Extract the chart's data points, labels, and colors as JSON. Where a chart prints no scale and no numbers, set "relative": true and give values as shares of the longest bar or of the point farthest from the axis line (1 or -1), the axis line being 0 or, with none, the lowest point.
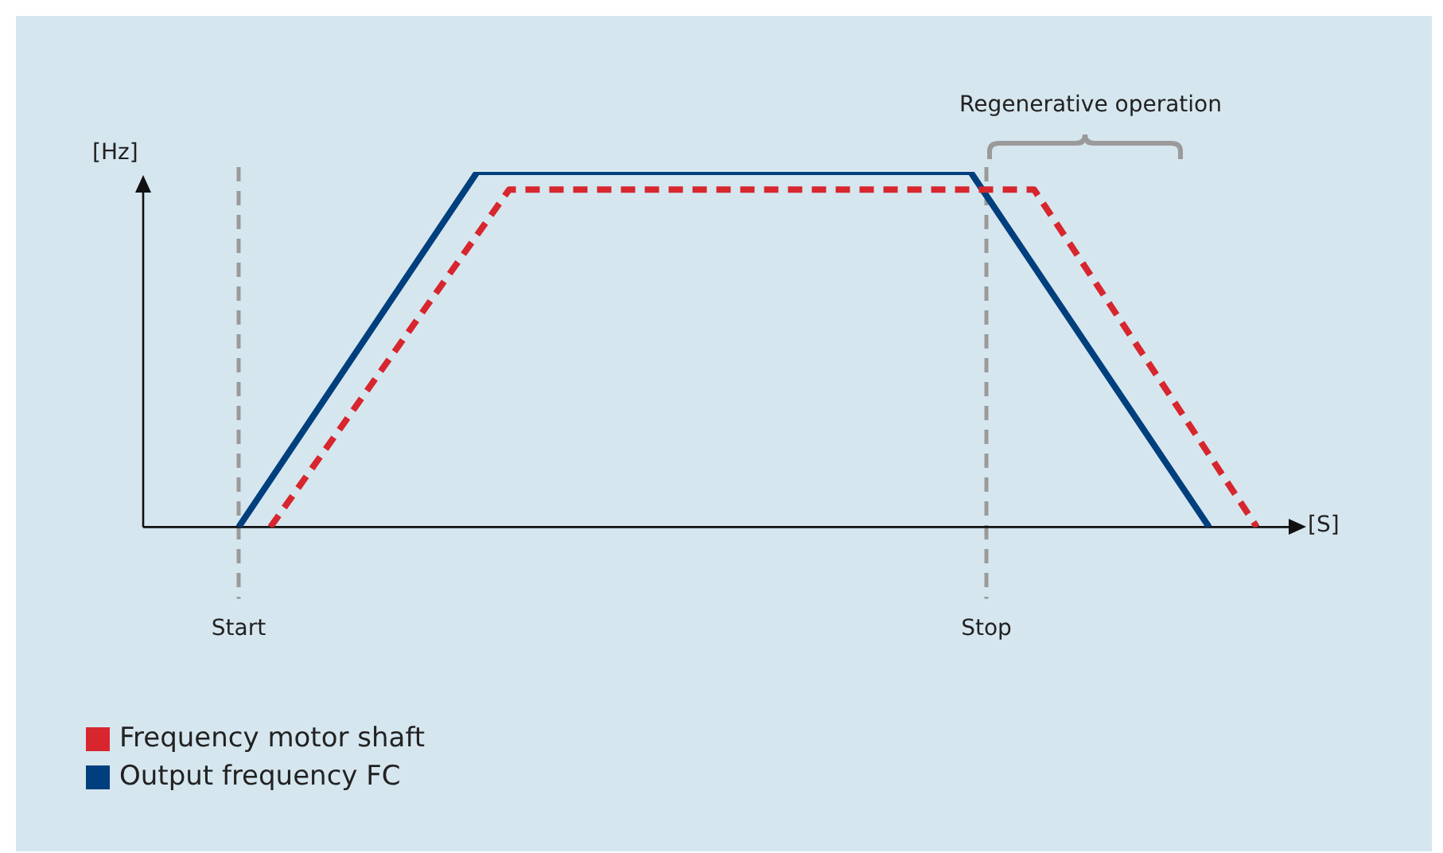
{
  "chart_data": {
    "type": "line",
    "relative": true,
    "xlabel": "[S]",
    "ylabel": "[Hz]",
    "legend": "bottom left",
    "marker": "none",
    "categories": [
      null,
      null,
      null,
      null,
      null,
      null,
      "Start",
      null,
      null,
      null,
      null,
      null,
      null,
      null,
      null,
      null,
      null,
      null,
      null,
      null,
      null,
      null,
      null,
      null,
      null,
      null,
      null,
      null,
      null,
      null,
      null,
      null,
      null,
      null,
      null,
      null,
      null,
      null,
      null,
      null,
      null,
      null,
      null,
      null,
      null,
      null,
      null,
      null,
      null,
      null,
      null,
      null,
      null,
      "Stop",
      null,
      null,
      null,
      null,
      null,
      null,
      null,
      null,
      null,
      null,
      null,
      null,
      null,
      null,
      null,
      null,
      null,
      null,
      null
    ],
    "series": [
      {
        "name": "Frequency motor shaft",
        "color": "#d7262e",
        "line_style": "dashed",
        "values": [
          null,
          null,
          null,
          null,
          null,
          null,
          null,
          null,
          0,
          null,
          null,
          null,
          null,
          null,
          null,
          null,
          null,
          null,
          null,
          null,
          null,
          null,
          null,
          0.95,
          null,
          null,
          null,
          null,
          null,
          null,
          null,
          null,
          null,
          null,
          null,
          null,
          null,
          null,
          null,
          null,
          null,
          null,
          null,
          null,
          null,
          null,
          null,
          null,
          null,
          null,
          null,
          null,
          null,
          null,
          null,
          null,
          0.95,
          null,
          null,
          null,
          null,
          null,
          null,
          null,
          null,
          null,
          null,
          null,
          null,
          null,
          0,
          null,
          null
        ]
      },
      {
        "name": "Output frequency FC",
        "color": "#003f7d",
        "line_style": "solid",
        "values": [
          null,
          null,
          null,
          null,
          null,
          null,
          0,
          null,
          null,
          null,
          null,
          null,
          null,
          null,
          null,
          null,
          null,
          null,
          null,
          null,
          null,
          1,
          null,
          null,
          null,
          null,
          null,
          null,
          null,
          null,
          null,
          null,
          null,
          null,
          null,
          null,
          null,
          null,
          null,
          null,
          null,
          null,
          null,
          null,
          null,
          null,
          null,
          null,
          null,
          null,
          null,
          null,
          1,
          null,
          null,
          null,
          null,
          null,
          null,
          null,
          null,
          null,
          null,
          null,
          null,
          null,
          null,
          0,
          null,
          null,
          null,
          null,
          null
        ]
      }
    ],
    "ref_lines": [
      {
        "axis": "x",
        "value": "Start",
        "color": "#9a9a9a",
        "line_style": "dashed"
      },
      {
        "axis": "x",
        "value": "Stop",
        "color": "#9a9a9a",
        "line_style": "dashed"
      }
    ],
    "annotations": [
      "Regenerative operation"
    ]
  }
}
